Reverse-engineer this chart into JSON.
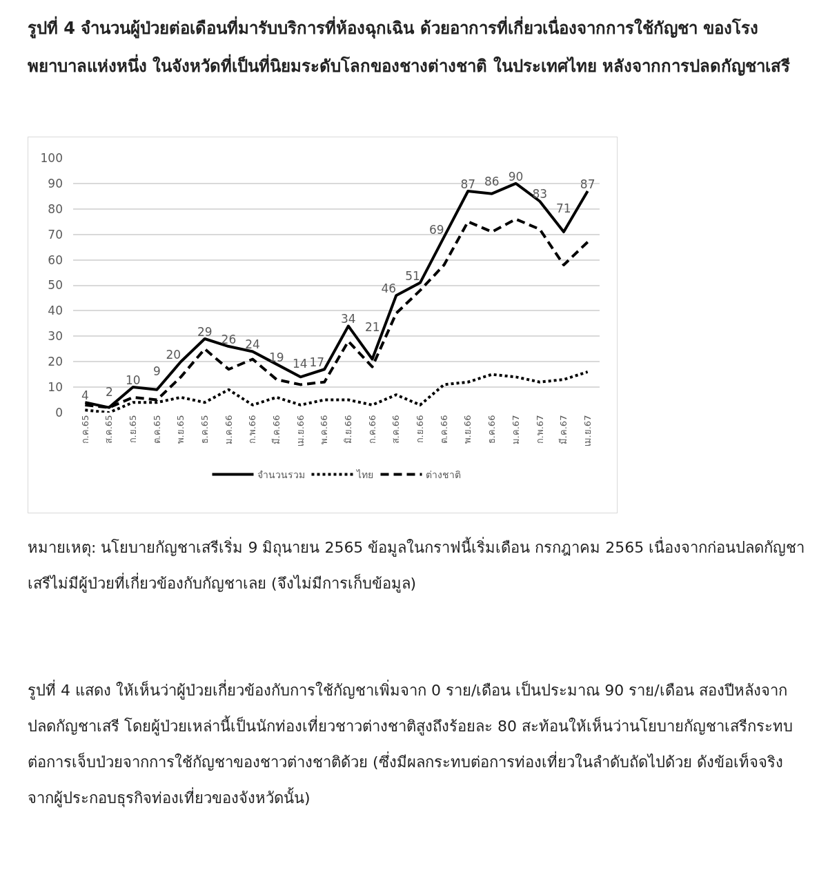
{
  "chart_data": {
    "type": "line",
    "title": "รูปที่ 4 จำนวนผู้ป่วยต่อเดือนที่มารับบริการที่ห้องฉุกเฉิน ด้วยอาการที่เกี่ยวเนื่องจากการใช้กัญชา ของโรงพยาบาลแห่งหนึ่ง ในจังหวัดที่เป็นที่นิยมระดับโลกของชางต่างชาติ ในประเทศไทย หลังจากการปลดกัญชาเสรี",
    "categories": [
      "ก.ค.65",
      "ส.ค.65",
      "ก.ย.65",
      "ต.ค.65",
      "พ.ย.65",
      "ธ.ค.65",
      "ม.ค.66",
      "ก.พ.66",
      "มี.ค.66",
      "เม.ย.66",
      "พ.ค.66",
      "มิ.ย.66",
      "ก.ค.66",
      "ส.ค.66",
      "ก.ย.66",
      "ต.ค.66",
      "พ.ย.66",
      "ธ.ค.66",
      "ม.ค.67",
      "ก.พ.67",
      "มี.ค.67",
      "เม.ย.67"
    ],
    "series": [
      {
        "name": "จำนวนรวม",
        "color": "#000000",
        "line_style": "solid",
        "values": [
          4,
          2,
          10,
          9,
          20,
          29,
          26,
          24,
          19,
          14,
          17,
          34,
          21,
          46,
          51,
          69,
          87,
          86,
          90,
          83,
          71,
          87
        ],
        "value_labels": [
          "4",
          "2",
          "10",
          "9",
          "20",
          "29",
          "26",
          "24",
          "19",
          "14",
          "17",
          "34",
          "21",
          "46",
          "51",
          "69",
          "87",
          "86",
          "90",
          "83",
          "71",
          "87"
        ]
      },
      {
        "name": "ไทย",
        "color": "#000000",
        "line_style": "dotted",
        "values": [
          1,
          0,
          4,
          4,
          6,
          4,
          9,
          3,
          6,
          3,
          5,
          5,
          3,
          7,
          3,
          11,
          12,
          15,
          14,
          12,
          13,
          16
        ]
      },
      {
        "name": "ต่างชาติ",
        "color": "#000000",
        "line_style": "dashed",
        "values": [
          3,
          2,
          6,
          5,
          14,
          25,
          17,
          21,
          13,
          11,
          12,
          28,
          18,
          39,
          48,
          58,
          75,
          71,
          76,
          72,
          58,
          67
        ]
      }
    ],
    "ylim": [
      0,
      100
    ],
    "yticks": [
      0,
      10,
      20,
      30,
      40,
      50,
      60,
      70,
      80,
      90,
      100
    ],
    "grid": "y",
    "legend": "bottom",
    "marker": "none",
    "annotations": [
      "หมายเหตุ: นโยบายกัญชาเสรีเริ่ม 9 มิถุนายน 2565   ข้อมูลในกราฟนี้เริ่มเดือน กรกฎาคม 2565 เนื่องจากก่อนปลดกัญชาเสรีไม่มีผู้ป่วยที่เกี่ยวข้องกับกัญชาเลย  (จึงไม่มีการเก็บข้อมูล)",
      "รูปที่ 4  แสดง ให้เห็นว่าผู้ป่วยเกี่ยวข้องกับการใช้กัญชาเพิ่มจาก 0 ราย/เดือน เป็นประมาณ 90 ราย/เดือน สองปีหลังจากปลดกัญชาเสรี โดยผู้ป่วยเหล่านี้เป็นนักท่องเที่ยวชาวต่างชาติสูงถึงร้อยละ 80    สะท้อนให้เห็นว่านโยบายกัญชาเสรีกระทบต่อการเจ็บป่วยจากการใช้กัญชาของชาวต่างชาติด้วย (ซึ่งมีผลกระทบต่อการท่องเที่ยวในลำดับถัดไปด้วย ดังข้อเท็จจริงจากผู้ประกอบธุรกิจท่องเที่ยวของจังหวัดนั้น)"
    ]
  }
}
